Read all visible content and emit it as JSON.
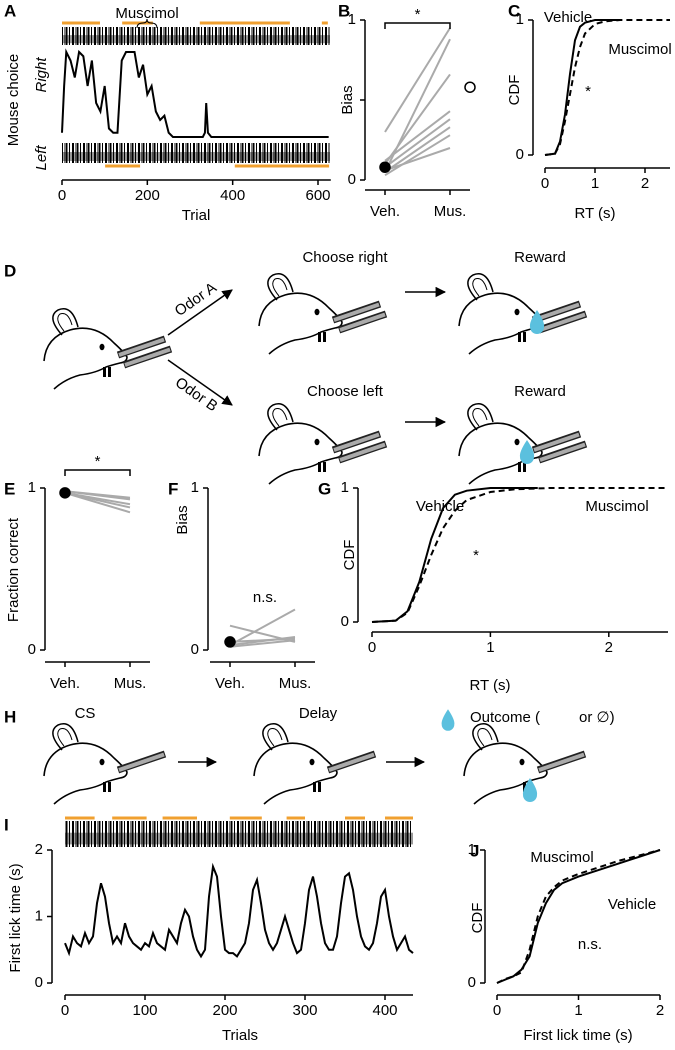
{
  "chart_data": [
    {
      "panel": "A",
      "type": "line",
      "x_label": "Trial",
      "y_label": "Mouse choice",
      "row_labels": [
        "Right",
        "Left"
      ],
      "block_label": "Muscimol",
      "xlim": [
        0,
        630
      ],
      "ylim": [
        0,
        1
      ],
      "xticks": [
        0,
        200,
        400,
        600
      ],
      "muscimol_blocks": [
        [
          0,
          89
        ],
        [
          141,
          213
        ],
        [
          323,
          534
        ],
        [
          609,
          623
        ]
      ],
      "lower_blocks": [
        [
          101,
          183
        ],
        [
          405,
          626
        ]
      ],
      "block_color": "#f0a030",
      "series": [
        {
          "color": "#000000",
          "dash": false,
          "x": [
            0,
            5,
            10,
            20,
            30,
            40,
            50,
            60,
            70,
            80,
            90,
            100,
            110,
            120,
            130,
            140,
            150,
            160,
            170,
            180,
            190,
            200,
            210,
            220,
            230,
            240,
            250,
            260,
            330,
            335,
            338,
            342,
            350,
            625
          ],
          "values": [
            0.05,
            0.6,
            1,
            0.9,
            0.7,
            1,
            0.95,
            0.6,
            0.9,
            0.4,
            0.3,
            0.6,
            0.1,
            0.05,
            0.05,
            0.9,
            1,
            1,
            1,
            0.7,
            0.85,
            0.5,
            0.6,
            0.3,
            0.2,
            0.25,
            0.05,
            0,
            0,
            0.05,
            0.4,
            0.05,
            0,
            0
          ]
        }
      ]
    },
    {
      "panel": "B",
      "type": "slope",
      "y_label": "Bias",
      "categories": [
        "Veh.",
        "Mus."
      ],
      "ylim": [
        0,
        1
      ],
      "yticks": [
        0,
        1
      ],
      "minor_yticks": [
        0.5
      ],
      "significance": "*",
      "series": [
        {
          "color": "#aaaaaa",
          "values": [
            0.3,
            0.95
          ]
        },
        {
          "color": "#aaaaaa",
          "values": [
            0.05,
            0.88
          ]
        },
        {
          "color": "#aaaaaa",
          "values": [
            0.1,
            0.66
          ]
        },
        {
          "color": "#aaaaaa",
          "values": [
            0.12,
            0.43
          ]
        },
        {
          "color": "#aaaaaa",
          "values": [
            0.08,
            0.38
          ]
        },
        {
          "color": "#aaaaaa",
          "values": [
            0.05,
            0.33
          ]
        },
        {
          "color": "#aaaaaa",
          "values": [
            0.03,
            0.28
          ]
        },
        {
          "color": "#aaaaaa",
          "values": [
            0.06,
            0.2
          ]
        }
      ],
      "markers": [
        {
          "category": "Veh.",
          "value": 0.08,
          "fill": "#000000"
        },
        {
          "category": "Mus.",
          "value": 0.58,
          "fill": "none"
        }
      ]
    },
    {
      "panel": "C",
      "type": "line",
      "x_label": "RT (s)",
      "y_label": "CDF",
      "xlim": [
        0,
        2.5
      ],
      "ylim": [
        0,
        1
      ],
      "xticks": [
        0,
        1,
        2
      ],
      "yticks": [
        0,
        1
      ],
      "annotation": "*",
      "series": [
        {
          "name": "Vehicle",
          "color": "#000000",
          "dash": false,
          "x": [
            0,
            0.2,
            0.3,
            0.4,
            0.5,
            0.6,
            0.7,
            0.8,
            1,
            1.2,
            1.5
          ],
          "values": [
            0,
            0.01,
            0.1,
            0.3,
            0.6,
            0.85,
            0.95,
            0.98,
            1,
            1,
            1
          ]
        },
        {
          "name": "Muscimol",
          "color": "#000000",
          "dash": true,
          "x": [
            0,
            0.2,
            0.3,
            0.4,
            0.5,
            0.6,
            0.7,
            0.8,
            1,
            1.2,
            1.5,
            2.5
          ],
          "values": [
            0,
            0.01,
            0.08,
            0.25,
            0.45,
            0.65,
            0.8,
            0.9,
            0.97,
            0.99,
            1,
            1
          ]
        }
      ]
    },
    {
      "panel": "E",
      "type": "slope",
      "y_label": "Fraction correct",
      "categories": [
        "Veh.",
        "Mus."
      ],
      "ylim": [
        0,
        1
      ],
      "yticks": [
        0,
        1
      ],
      "significance": "*",
      "series": [
        {
          "color": "#aaaaaa",
          "values": [
            0.98,
            0.94
          ]
        },
        {
          "color": "#aaaaaa",
          "values": [
            0.98,
            0.93
          ]
        },
        {
          "color": "#aaaaaa",
          "values": [
            0.97,
            0.9
          ]
        },
        {
          "color": "#aaaaaa",
          "values": [
            0.97,
            0.88
          ]
        },
        {
          "color": "#aaaaaa",
          "values": [
            0.97,
            0.85
          ]
        }
      ],
      "markers": [
        {
          "category": "Veh.",
          "value": 0.97,
          "fill": "#000000"
        }
      ]
    },
    {
      "panel": "F",
      "type": "slope",
      "y_label": "Bias",
      "categories": [
        "Veh.",
        "Mus."
      ],
      "ylim": [
        0,
        1
      ],
      "yticks": [
        0,
        1
      ],
      "annotation": "n.s.",
      "series": [
        {
          "color": "#aaaaaa",
          "values": [
            0.03,
            0.25
          ]
        },
        {
          "color": "#aaaaaa",
          "values": [
            0.15,
            0.05
          ]
        },
        {
          "color": "#aaaaaa",
          "values": [
            0.05,
            0.07
          ]
        },
        {
          "color": "#aaaaaa",
          "values": [
            0.03,
            0.08
          ]
        },
        {
          "color": "#aaaaaa",
          "values": [
            0.02,
            0.06
          ]
        }
      ],
      "markers": [
        {
          "category": "Veh.",
          "value": 0.05,
          "fill": "#000000"
        }
      ]
    },
    {
      "panel": "G",
      "type": "line",
      "x_label": "RT (s)",
      "y_label": "CDF",
      "xlim": [
        0,
        2.5
      ],
      "ylim": [
        0,
        1
      ],
      "xticks": [
        0,
        1,
        2
      ],
      "yticks": [
        0,
        1
      ],
      "annotation": "*",
      "series": [
        {
          "name": "Vehicle",
          "color": "#000000",
          "dash": false,
          "x": [
            0,
            0.2,
            0.3,
            0.4,
            0.5,
            0.6,
            0.7,
            0.8,
            1,
            1.2,
            1.4
          ],
          "values": [
            0,
            0.01,
            0.08,
            0.3,
            0.62,
            0.85,
            0.95,
            0.98,
            1,
            1,
            1
          ]
        },
        {
          "name": "Muscimol",
          "color": "#000000",
          "dash": true,
          "x": [
            0,
            0.2,
            0.3,
            0.4,
            0.5,
            0.6,
            0.7,
            0.8,
            1,
            1.2,
            1.5,
            2.5
          ],
          "values": [
            0,
            0.01,
            0.07,
            0.27,
            0.5,
            0.7,
            0.83,
            0.91,
            0.97,
            0.99,
            1,
            1
          ]
        }
      ]
    },
    {
      "panel": "I",
      "type": "line",
      "x_label": "Trials",
      "y_label": "First lick time (s)",
      "xlim": [
        0,
        435
      ],
      "ylim": [
        0,
        2
      ],
      "xticks": [
        0,
        100,
        200,
        300,
        400
      ],
      "yticks": [
        0,
        1,
        2
      ],
      "muscimol_blocks": [
        [
          0,
          37
        ],
        [
          59,
          102
        ],
        [
          122,
          165
        ],
        [
          206,
          246
        ],
        [
          277,
          300
        ],
        [
          350,
          375
        ],
        [
          400,
          435
        ]
      ],
      "block_color": "#f0a030",
      "series": [
        {
          "color": "#000000",
          "dash": false,
          "x": [
            0,
            5,
            10,
            15,
            20,
            25,
            30,
            35,
            40,
            45,
            50,
            55,
            60,
            65,
            70,
            75,
            80,
            85,
            90,
            95,
            100,
            105,
            110,
            115,
            120,
            125,
            130,
            135,
            140,
            145,
            150,
            155,
            160,
            165,
            170,
            175,
            180,
            185,
            190,
            195,
            200,
            205,
            210,
            215,
            220,
            225,
            230,
            235,
            240,
            245,
            250,
            255,
            260,
            265,
            270,
            275,
            280,
            285,
            290,
            295,
            300,
            305,
            310,
            315,
            320,
            325,
            330,
            335,
            340,
            345,
            350,
            355,
            360,
            365,
            370,
            375,
            380,
            385,
            390,
            395,
            400,
            405,
            410,
            415,
            420,
            425,
            430,
            435
          ],
          "values": [
            0.6,
            0.45,
            0.7,
            0.6,
            0.55,
            0.75,
            0.6,
            0.7,
            1.2,
            1.5,
            1.3,
            0.9,
            0.6,
            0.7,
            0.6,
            0.9,
            0.7,
            0.6,
            0.55,
            0.5,
            0.6,
            0.55,
            0.75,
            0.6,
            0.55,
            0.5,
            0.8,
            0.7,
            0.6,
            0.9,
            1.1,
            1.0,
            0.7,
            0.5,
            0.4,
            0.5,
            1.3,
            1.75,
            1.6,
            1.0,
            0.5,
            0.45,
            0.45,
            0.4,
            0.5,
            0.6,
            0.9,
            1.4,
            1.55,
            1.2,
            0.8,
            0.6,
            0.5,
            0.6,
            0.8,
            1.0,
            0.8,
            0.6,
            0.45,
            0.5,
            0.9,
            1.4,
            1.6,
            1.3,
            0.9,
            0.6,
            0.5,
            0.5,
            0.7,
            1.2,
            1.6,
            1.65,
            1.4,
            1.0,
            0.7,
            0.55,
            0.5,
            0.6,
            0.9,
            1.3,
            1.4,
            1.0,
            0.7,
            0.5,
            0.6,
            0.7,
            0.5,
            0.45
          ]
        }
      ]
    },
    {
      "panel": "J",
      "type": "line",
      "x_label": "First lick time (s)",
      "y_label": "CDF",
      "xlim": [
        0,
        2
      ],
      "ylim": [
        0,
        1
      ],
      "xticks": [
        0,
        1,
        2
      ],
      "yticks": [
        0,
        1
      ],
      "annotation": "n.s.",
      "series": [
        {
          "name": "Vehicle",
          "color": "#000000",
          "dash": false,
          "x": [
            0,
            0.2,
            0.3,
            0.4,
            0.5,
            0.6,
            0.7,
            0.8,
            1,
            1.5,
            2
          ],
          "values": [
            0,
            0.05,
            0.1,
            0.2,
            0.45,
            0.6,
            0.7,
            0.75,
            0.8,
            0.9,
            1
          ]
        },
        {
          "name": "Muscimol",
          "color": "#000000",
          "dash": true,
          "x": [
            0,
            0.1,
            0.2,
            0.3,
            0.4,
            0.5,
            0.6,
            0.7,
            0.8,
            1,
            1.5,
            2
          ],
          "values": [
            0,
            0.03,
            0.05,
            0.08,
            0.25,
            0.5,
            0.65,
            0.72,
            0.77,
            0.82,
            0.92,
            1
          ]
        }
      ]
    }
  ],
  "diagrams": [
    {
      "panel": "D",
      "labels": [
        "Odor A",
        "Odor B",
        "Choose right",
        "Choose left",
        "Reward",
        "Reward"
      ]
    },
    {
      "panel": "H",
      "labels": [
        "CS",
        "Delay",
        "Outcome (",
        "or ∅)"
      ]
    }
  ]
}
